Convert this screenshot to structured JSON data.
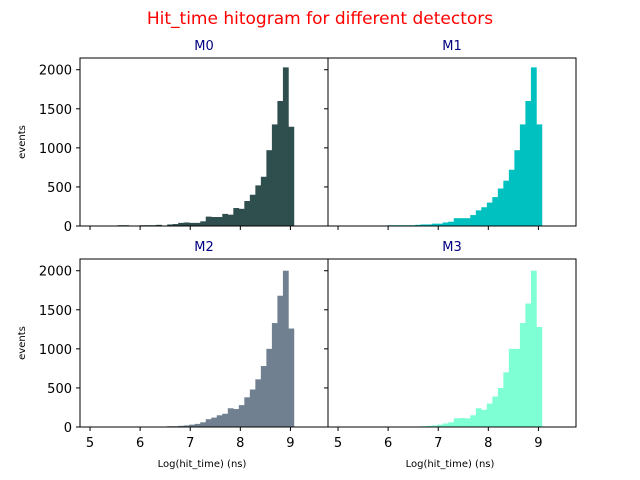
{
  "figure": {
    "title": "Hit_time hitogram for different detectors",
    "title_color": "#ff0000",
    "subtitle_color": "#000080"
  },
  "chart_data": [
    {
      "type": "bar",
      "title": "M0",
      "color": "#2f4f4f",
      "xlabel": "",
      "ylabel": "events",
      "xlim": [
        4.8,
        9.75
      ],
      "ylim": [
        0,
        2150
      ],
      "xticks": [
        "5",
        "6",
        "7",
        "8",
        "9"
      ],
      "yticks": [
        "0",
        "500",
        "1000",
        "1500",
        "2000"
      ],
      "show_xtick_labels": false,
      "show_ytick_labels": true,
      "bin_width": 0.11,
      "bin_starts": [
        5.0,
        5.11,
        5.22,
        5.33,
        5.44,
        5.55,
        5.66,
        5.77,
        5.88,
        5.99,
        6.1,
        6.21,
        6.32,
        6.43,
        6.54,
        6.65,
        6.76,
        6.87,
        6.98,
        7.09,
        7.2,
        7.31,
        7.42,
        7.53,
        7.64,
        7.75,
        7.86,
        7.97,
        8.08,
        8.19,
        8.3,
        8.41,
        8.52,
        8.63,
        8.74,
        8.85,
        8.96
      ],
      "values": [
        0,
        0,
        0,
        0,
        5,
        10,
        10,
        5,
        0,
        10,
        10,
        10,
        15,
        0,
        20,
        25,
        40,
        45,
        40,
        40,
        60,
        120,
        115,
        115,
        155,
        145,
        230,
        220,
        320,
        400,
        520,
        630,
        970,
        1300,
        1600,
        2030,
        1270
      ]
    },
    {
      "type": "bar",
      "title": "M1",
      "color": "#00c0c0",
      "xlabel": "",
      "ylabel": "",
      "xlim": [
        4.8,
        9.75
      ],
      "ylim": [
        0,
        2150
      ],
      "xticks": [
        "5",
        "6",
        "7",
        "8",
        "9"
      ],
      "yticks": [
        "0",
        "500",
        "1000",
        "1500",
        "2000"
      ],
      "show_xtick_labels": false,
      "show_ytick_labels": false,
      "bin_width": 0.11,
      "bin_starts": [
        5.0,
        5.11,
        5.22,
        5.33,
        5.44,
        5.55,
        5.66,
        5.77,
        5.88,
        5.99,
        6.1,
        6.21,
        6.32,
        6.43,
        6.54,
        6.65,
        6.76,
        6.87,
        6.98,
        7.09,
        7.2,
        7.31,
        7.42,
        7.53,
        7.64,
        7.75,
        7.86,
        7.97,
        8.08,
        8.19,
        8.3,
        8.41,
        8.52,
        8.63,
        8.74,
        8.85,
        8.96
      ],
      "values": [
        0,
        0,
        0,
        0,
        0,
        0,
        0,
        0,
        0,
        10,
        10,
        10,
        10,
        10,
        15,
        20,
        20,
        30,
        30,
        45,
        55,
        100,
        100,
        100,
        140,
        200,
        240,
        300,
        370,
        480,
        580,
        720,
        970,
        1300,
        1600,
        2030,
        1300
      ]
    },
    {
      "type": "bar",
      "title": "M2",
      "color": "#708090",
      "xlabel": "Log(hit_time) (ns)",
      "ylabel": "events",
      "xlim": [
        4.8,
        9.75
      ],
      "ylim": [
        0,
        2150
      ],
      "xticks": [
        "5",
        "6",
        "7",
        "8",
        "9"
      ],
      "yticks": [
        "0",
        "500",
        "1000",
        "1500",
        "2000"
      ],
      "show_xtick_labels": true,
      "show_ytick_labels": true,
      "bin_width": 0.11,
      "bin_starts": [
        5.0,
        5.11,
        5.22,
        5.33,
        5.44,
        5.55,
        5.66,
        5.77,
        5.88,
        5.99,
        6.1,
        6.21,
        6.32,
        6.43,
        6.54,
        6.65,
        6.76,
        6.87,
        6.98,
        7.09,
        7.2,
        7.31,
        7.42,
        7.53,
        7.64,
        7.75,
        7.86,
        7.97,
        8.08,
        8.19,
        8.3,
        8.41,
        8.52,
        8.63,
        8.74,
        8.85,
        8.96
      ],
      "values": [
        0,
        0,
        0,
        0,
        0,
        0,
        0,
        0,
        0,
        0,
        0,
        0,
        5,
        5,
        10,
        10,
        15,
        20,
        30,
        40,
        60,
        100,
        120,
        150,
        170,
        240,
        230,
        280,
        380,
        480,
        610,
        780,
        1000,
        1330,
        1680,
        2000,
        1260
      ]
    },
    {
      "type": "bar",
      "title": "M3",
      "color": "#7fffd4",
      "xlabel": "Log(hit_time) (ns)",
      "ylabel": "",
      "xlim": [
        4.8,
        9.75
      ],
      "ylim": [
        0,
        2150
      ],
      "xticks": [
        "5",
        "6",
        "7",
        "8",
        "9"
      ],
      "yticks": [
        "0",
        "500",
        "1000",
        "1500",
        "2000"
      ],
      "show_xtick_labels": true,
      "show_ytick_labels": false,
      "bin_width": 0.11,
      "bin_starts": [
        5.0,
        5.11,
        5.22,
        5.33,
        5.44,
        5.55,
        5.66,
        5.77,
        5.88,
        5.99,
        6.1,
        6.21,
        6.32,
        6.43,
        6.54,
        6.65,
        6.76,
        6.87,
        6.98,
        7.09,
        7.2,
        7.31,
        7.42,
        7.53,
        7.64,
        7.75,
        7.86,
        7.97,
        8.08,
        8.19,
        8.3,
        8.41,
        8.52,
        8.63,
        8.74,
        8.85,
        8.96
      ],
      "values": [
        0,
        0,
        0,
        0,
        0,
        0,
        0,
        0,
        0,
        0,
        0,
        0,
        0,
        5,
        5,
        10,
        15,
        20,
        30,
        45,
        60,
        110,
        115,
        110,
        150,
        240,
        220,
        300,
        390,
        500,
        700,
        1000,
        1000,
        1330,
        1580,
        2000,
        1280
      ]
    }
  ]
}
